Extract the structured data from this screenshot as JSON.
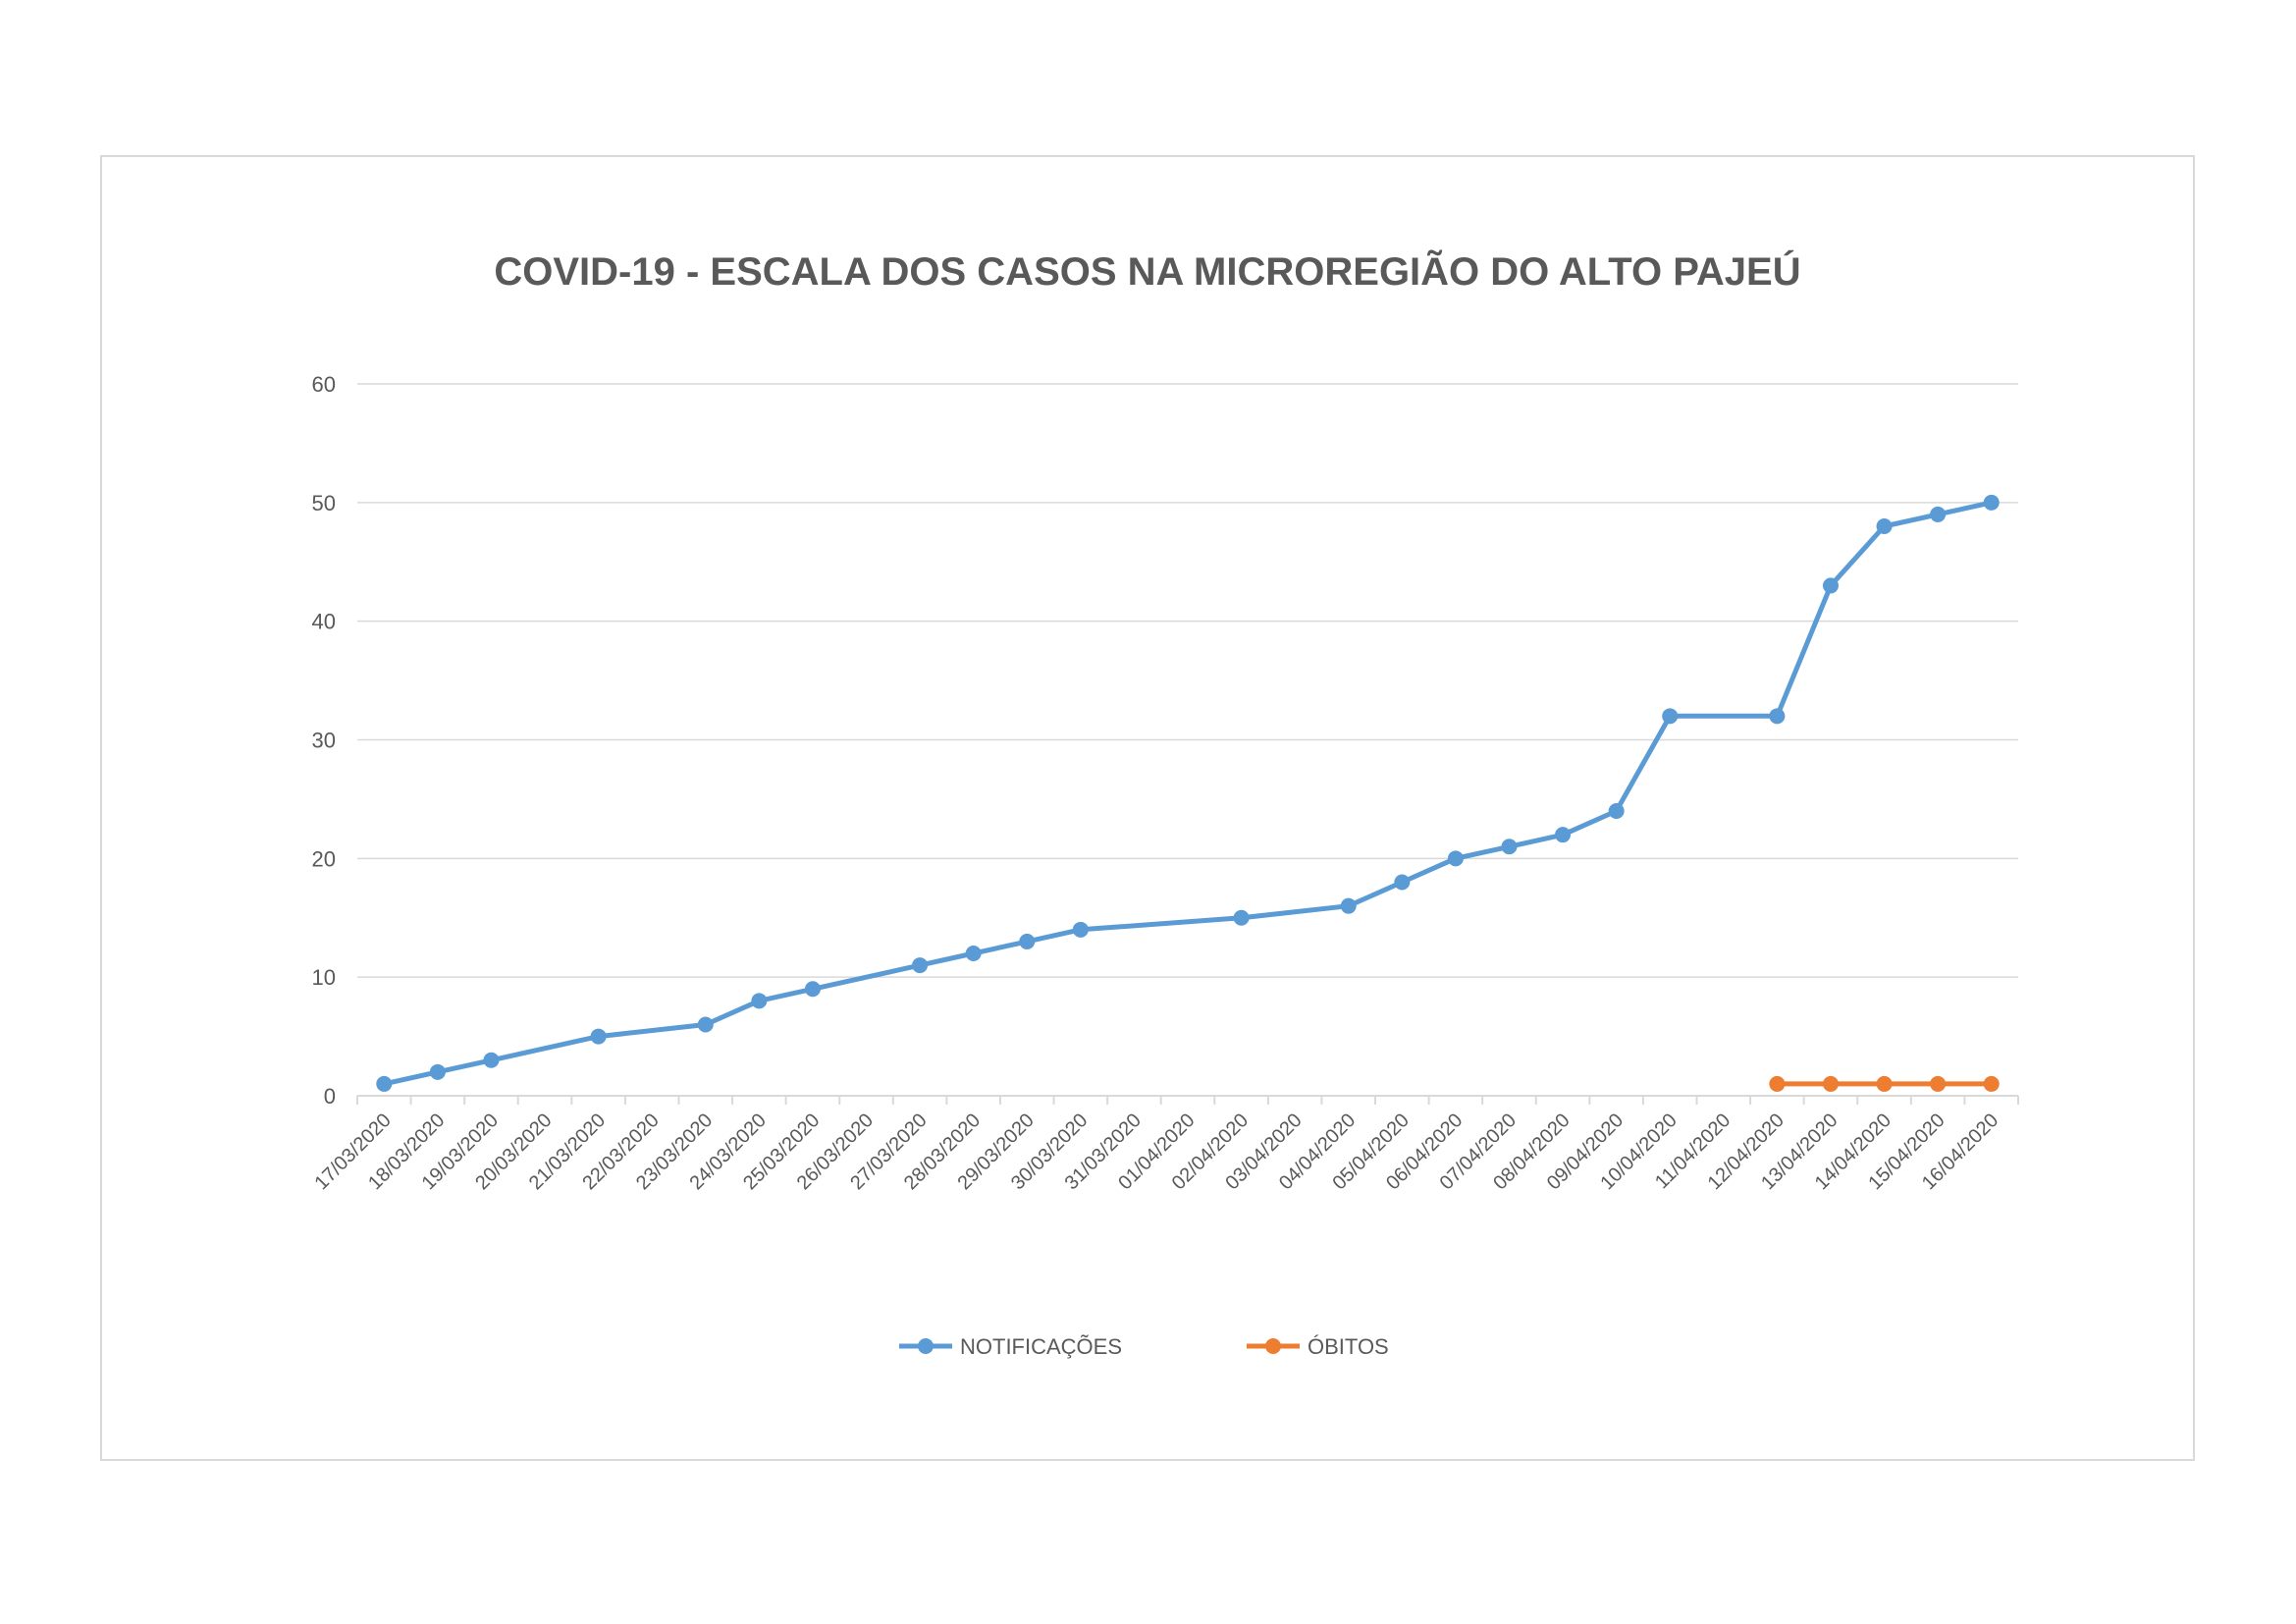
{
  "chart_data": {
    "type": "line",
    "title": "COVID-19 - ESCALA DOS CASOS NA MICROREGIÃO DO ALTO PAJEÚ",
    "xlabel": "",
    "ylabel": "",
    "ylim": [
      0,
      60
    ],
    "yticks": [
      0,
      10,
      20,
      30,
      40,
      50,
      60
    ],
    "grid": true,
    "legend_position": "bottom",
    "categories": [
      "17/03/2020",
      "18/03/2020",
      "19/03/2020",
      "20/03/2020",
      "21/03/2020",
      "22/03/2020",
      "23/03/2020",
      "24/03/2020",
      "25/03/2020",
      "26/03/2020",
      "27/03/2020",
      "28/03/2020",
      "29/03/2020",
      "30/03/2020",
      "31/03/2020",
      "01/04/2020",
      "02/04/2020",
      "03/04/2020",
      "04/04/2020",
      "05/04/2020",
      "06/04/2020",
      "07/04/2020",
      "08/04/2020",
      "09/04/2020",
      "10/04/2020",
      "11/04/2020",
      "12/04/2020",
      "13/04/2020",
      "14/04/2020",
      "15/04/2020",
      "16/04/2020"
    ],
    "series": [
      {
        "name": "NOTIFICAÇÕES",
        "color": "#5b9bd5",
        "values": [
          1,
          2,
          3,
          null,
          5,
          null,
          6,
          8,
          9,
          null,
          11,
          12,
          13,
          14,
          null,
          null,
          15,
          null,
          16,
          18,
          20,
          21,
          22,
          24,
          32,
          null,
          32,
          43,
          48,
          49,
          50
        ]
      },
      {
        "name": "ÓBITOS",
        "color": "#ed7d31",
        "values": [
          null,
          null,
          null,
          null,
          null,
          null,
          null,
          null,
          null,
          null,
          null,
          null,
          null,
          null,
          null,
          null,
          null,
          null,
          null,
          null,
          null,
          null,
          null,
          null,
          null,
          null,
          1,
          1,
          1,
          1,
          1
        ]
      }
    ]
  }
}
